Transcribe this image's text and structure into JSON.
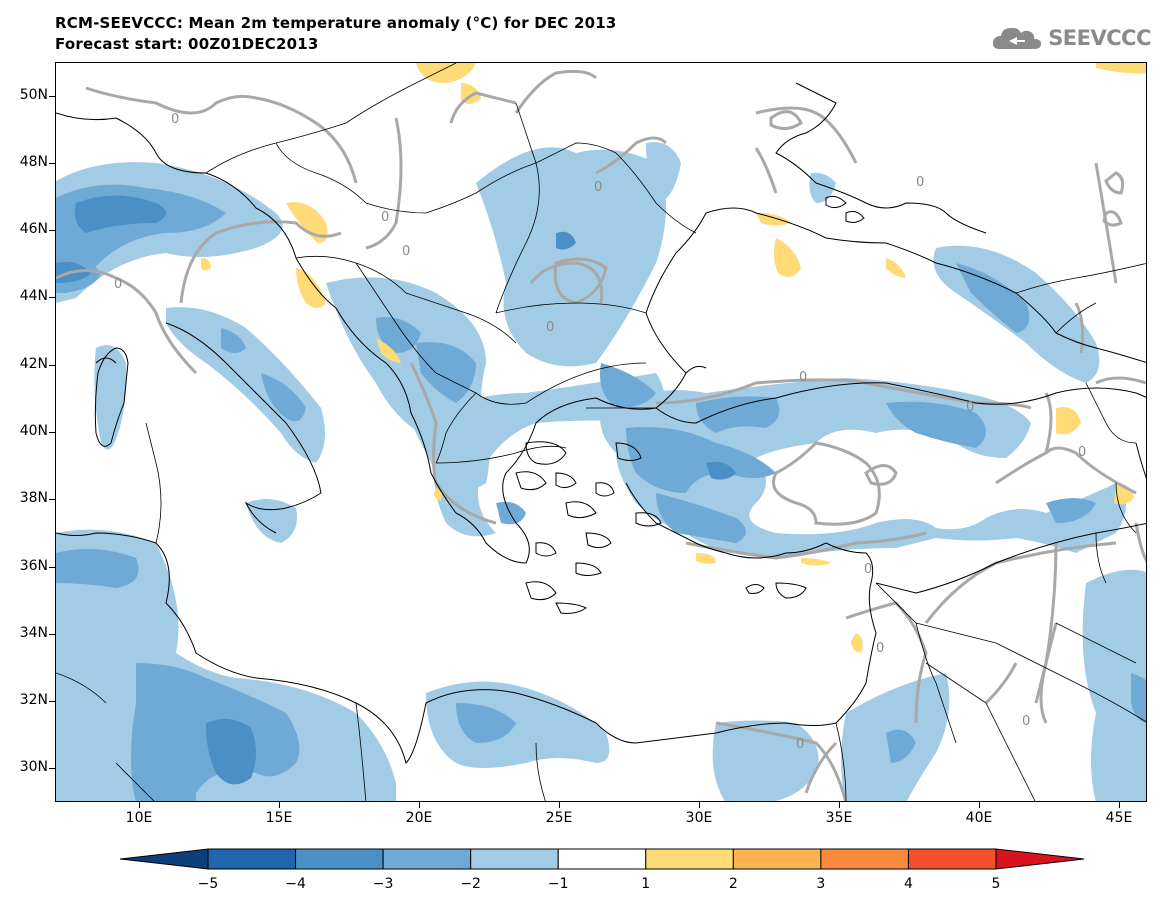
{
  "header": {
    "title_line1": "RCM-SEEVCCC: Mean 2m temperature anomaly (°C) for DEC 2013",
    "title_line2": "Forecast start: 00Z01DEC2013"
  },
  "logo": {
    "text": "SEEVCCC",
    "icon": "cloud-icon"
  },
  "map": {
    "projection": "lat-lon",
    "lon_range": [
      7,
      46
    ],
    "lat_range": [
      29,
      51
    ],
    "lat_ticks": [
      {
        "value": 50,
        "label": "50N"
      },
      {
        "value": 48,
        "label": "48N"
      },
      {
        "value": 46,
        "label": "46N"
      },
      {
        "value": 44,
        "label": "44N"
      },
      {
        "value": 42,
        "label": "42N"
      },
      {
        "value": 40,
        "label": "40N"
      },
      {
        "value": 38,
        "label": "38N"
      },
      {
        "value": 36,
        "label": "36N"
      },
      {
        "value": 34,
        "label": "34N"
      },
      {
        "value": 32,
        "label": "32N"
      },
      {
        "value": 30,
        "label": "30N"
      }
    ],
    "lon_ticks": [
      {
        "value": 10,
        "label": "10E"
      },
      {
        "value": 15,
        "label": "15E"
      },
      {
        "value": 20,
        "label": "20E"
      },
      {
        "value": 25,
        "label": "25E"
      },
      {
        "value": 30,
        "label": "30E"
      },
      {
        "value": 35,
        "label": "35E"
      },
      {
        "value": 40,
        "label": "40E"
      },
      {
        "value": 45,
        "label": "45E"
      }
    ],
    "contour_label": "0",
    "colors": {
      "neg5": "#0d3f7a",
      "neg4": "#2166ac",
      "neg3": "#4a8fc6",
      "neg2": "#6fa9d6",
      "neg1": "#a2cbe6",
      "zero": "#ffffff",
      "pos1": "#fedb76",
      "pos2": "#fdb34f",
      "pos3": "#fc8a3d",
      "pos4": "#f5502c",
      "pos5": "#d9131e",
      "contour": "#a8a8a8"
    }
  },
  "colorbar": {
    "levels": [
      -5,
      -4,
      -3,
      -2,
      -1,
      1,
      2,
      3,
      4,
      5
    ],
    "labels": [
      "−5",
      "−4",
      "−3",
      "−2",
      "−1",
      "1",
      "2",
      "3",
      "4",
      "5"
    ],
    "colors": [
      "#0d3f7a",
      "#2166ac",
      "#4a8fc6",
      "#6fa9d6",
      "#a2cbe6",
      "#ffffff",
      "#fedb76",
      "#fdb34f",
      "#fc8a3d",
      "#f5502c",
      "#d9131e"
    ]
  }
}
